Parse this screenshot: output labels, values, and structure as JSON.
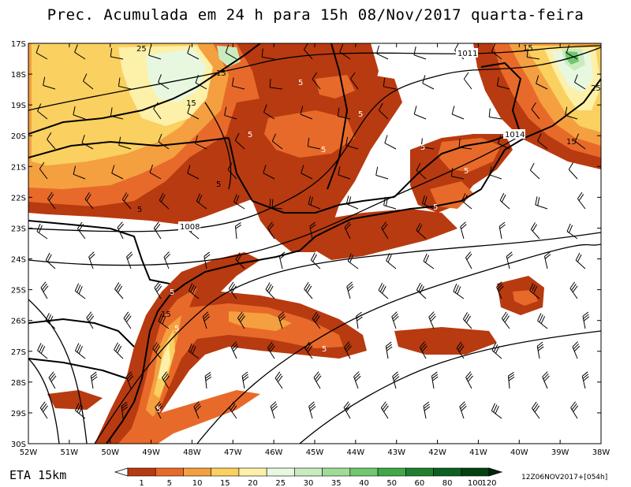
{
  "title": "Prec. Acumulada em 24 h para 15h 08/Nov/2017 quarta-feira",
  "model_label": "ETA 15km",
  "run_label": "12Z06NOV2017+[054h]",
  "lat_labels": [
    "17S",
    "18S",
    "19S",
    "20S",
    "21S",
    "22S",
    "23S",
    "24S",
    "25S",
    "26S",
    "27S",
    "28S",
    "29S",
    "30S"
  ],
  "lon_labels": [
    "52W",
    "51W",
    "50W",
    "49W",
    "48W",
    "47W",
    "46W",
    "45W",
    "44W",
    "43W",
    "42W",
    "41W",
    "40W",
    "39W",
    "38W"
  ],
  "pressure_labels": [
    "1011",
    "1014",
    "1008"
  ],
  "precip_labels": [
    "25",
    "15",
    "15",
    "5",
    "5",
    "5",
    "5",
    "5",
    "5",
    "5",
    "5",
    "5",
    "15",
    "5",
    "5",
    "15",
    "25",
    "15",
    "5",
    "5"
  ],
  "colorbar": {
    "levels": [
      "1",
      "5",
      "10",
      "15",
      "20",
      "25",
      "30",
      "35",
      "40",
      "50",
      "60",
      "80",
      "100",
      "120"
    ],
    "colors": [
      "#ffffff",
      "#b83a10",
      "#e86a2a",
      "#f4a040",
      "#fad060",
      "#fdf0a8",
      "#e8f8e0",
      "#c8ecc0",
      "#a0dc98",
      "#70c870",
      "#40a848",
      "#208030",
      "#0c6020",
      "#044010",
      "#002808"
    ]
  },
  "legend_colors": {
    "p1": "#b83a10",
    "p5": "#e86a2a",
    "p10": "#f4a040",
    "p15": "#fad060",
    "p20": "#fdf0a8",
    "p25": "#e8f8e0",
    "p30": "#c8ecc0"
  }
}
